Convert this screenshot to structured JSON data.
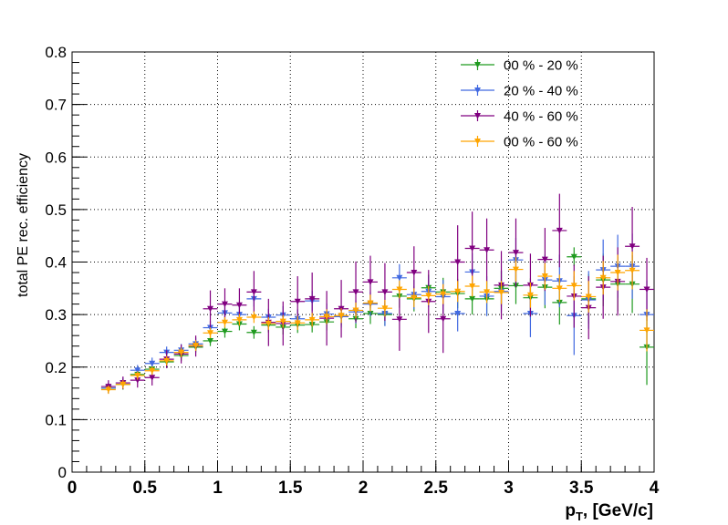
{
  "chart_data": {
    "type": "scatter",
    "title": "",
    "xlabel": "p_T, [GeV/c]",
    "xlabel_main": "p",
    "xlabel_sub": "T",
    "xlabel_rest": ", [GeV/c]",
    "ylabel": "total PE rec. efficiency",
    "xlim": [
      0,
      4
    ],
    "ylim": [
      0,
      0.8
    ],
    "grid": true,
    "legend_position": "top-right",
    "x_ticks": [
      "0",
      "0.5",
      "1",
      "1.5",
      "2",
      "2.5",
      "3",
      "3.5",
      "4"
    ],
    "y_ticks": [
      "0",
      "0.1",
      "0.2",
      "0.3",
      "0.4",
      "0.5",
      "0.6",
      "0.7",
      "0.8"
    ],
    "x_bin_half_width": 0.05,
    "x": [
      0.25,
      0.35,
      0.45,
      0.55,
      0.65,
      0.75,
      0.85,
      0.95,
      1.05,
      1.15,
      1.25,
      1.35,
      1.45,
      1.55,
      1.65,
      1.75,
      1.85,
      1.95,
      2.05,
      2.15,
      2.25,
      2.35,
      2.45,
      2.55,
      2.65,
      2.75,
      2.85,
      2.95,
      3.05,
      3.15,
      3.25,
      3.35,
      3.45,
      3.55,
      3.65,
      3.75,
      3.85,
      3.95
    ],
    "series": [
      {
        "name": "00 % - 20 %",
        "color": "#1f9a1f",
        "values": [
          0.16,
          0.167,
          0.186,
          0.196,
          0.21,
          0.222,
          0.238,
          0.25,
          0.268,
          0.282,
          0.266,
          0.28,
          0.276,
          0.28,
          0.281,
          0.286,
          0.296,
          0.292,
          0.302,
          0.3,
          0.335,
          0.33,
          0.351,
          0.343,
          0.34,
          0.33,
          0.33,
          0.35,
          0.355,
          0.332,
          0.352,
          0.323,
          0.41,
          0.33,
          0.366,
          0.358,
          0.358,
          0.238
        ],
        "errors": [
          0.01,
          0.01,
          0.01,
          0.01,
          0.01,
          0.01,
          0.01,
          0.01,
          0.012,
          0.012,
          0.012,
          0.014,
          0.014,
          0.015,
          0.015,
          0.016,
          0.017,
          0.018,
          0.02,
          0.021,
          0.022,
          0.024,
          0.025,
          0.027,
          0.028,
          0.03,
          0.032,
          0.033,
          0.035,
          0.037,
          0.04,
          0.042,
          0.018,
          0.047,
          0.05,
          0.052,
          0.055,
          0.072
        ]
      },
      {
        "name": "20 % - 40 %",
        "color": "#4169e1",
        "values": [
          0.16,
          0.17,
          0.194,
          0.207,
          0.228,
          0.232,
          0.244,
          0.275,
          0.303,
          0.3,
          0.33,
          0.295,
          0.299,
          0.292,
          0.326,
          0.301,
          0.296,
          0.305,
          0.32,
          0.302,
          0.37,
          0.338,
          0.344,
          0.334,
          0.302,
          0.381,
          0.335,
          0.344,
          0.404,
          0.302,
          0.366,
          0.364,
          0.298,
          0.328,
          0.385,
          0.392,
          0.392,
          0.3
        ],
        "errors": [
          0.01,
          0.01,
          0.01,
          0.011,
          0.011,
          0.012,
          0.012,
          0.013,
          0.013,
          0.014,
          0.015,
          0.016,
          0.017,
          0.018,
          0.019,
          0.02,
          0.021,
          0.022,
          0.023,
          0.024,
          0.026,
          0.028,
          0.03,
          0.032,
          0.034,
          0.036,
          0.038,
          0.04,
          0.042,
          0.045,
          0.048,
          0.05,
          0.075,
          0.055,
          0.058,
          0.06,
          0.062,
          0.065
        ]
      },
      {
        "name": "40 % - 60 %",
        "color": "#800080",
        "values": [
          0.163,
          0.17,
          0.175,
          0.18,
          0.215,
          0.225,
          0.24,
          0.311,
          0.32,
          0.318,
          0.343,
          0.285,
          0.283,
          0.325,
          0.33,
          0.293,
          0.311,
          0.343,
          0.362,
          0.343,
          0.291,
          0.38,
          0.325,
          0.292,
          0.4,
          0.426,
          0.423,
          0.356,
          0.418,
          0.356,
          0.405,
          0.46,
          0.335,
          0.313,
          0.352,
          0.363,
          0.43,
          0.348
        ],
        "errors": [
          0.012,
          0.012,
          0.014,
          0.015,
          0.017,
          0.018,
          0.02,
          0.035,
          0.03,
          0.032,
          0.04,
          0.045,
          0.042,
          0.048,
          0.05,
          0.052,
          0.055,
          0.058,
          0.05,
          0.055,
          0.06,
          0.05,
          0.06,
          0.065,
          0.07,
          0.07,
          0.06,
          0.065,
          0.065,
          0.06,
          0.06,
          0.07,
          0.06,
          0.06,
          0.06,
          0.065,
          0.075,
          0.06
        ]
      },
      {
        "name": "00 % - 60 %",
        "color": "#ffa500",
        "values": [
          0.157,
          0.167,
          0.184,
          0.193,
          0.212,
          0.228,
          0.241,
          0.265,
          0.285,
          0.29,
          0.295,
          0.283,
          0.287,
          0.284,
          0.29,
          0.296,
          0.298,
          0.308,
          0.322,
          0.312,
          0.348,
          0.332,
          0.336,
          0.339,
          0.344,
          0.354,
          0.343,
          0.342,
          0.386,
          0.337,
          0.373,
          0.35,
          0.355,
          0.334,
          0.37,
          0.38,
          0.384,
          0.27
        ],
        "errors": [
          0.008,
          0.008,
          0.008,
          0.008,
          0.009,
          0.009,
          0.01,
          0.01,
          0.01,
          0.011,
          0.011,
          0.012,
          0.012,
          0.013,
          0.013,
          0.014,
          0.014,
          0.015,
          0.016,
          0.016,
          0.017,
          0.018,
          0.018,
          0.019,
          0.02,
          0.02,
          0.021,
          0.022,
          0.023,
          0.024,
          0.025,
          0.026,
          0.028,
          0.03,
          0.032,
          0.034,
          0.036,
          0.04
        ]
      }
    ]
  }
}
